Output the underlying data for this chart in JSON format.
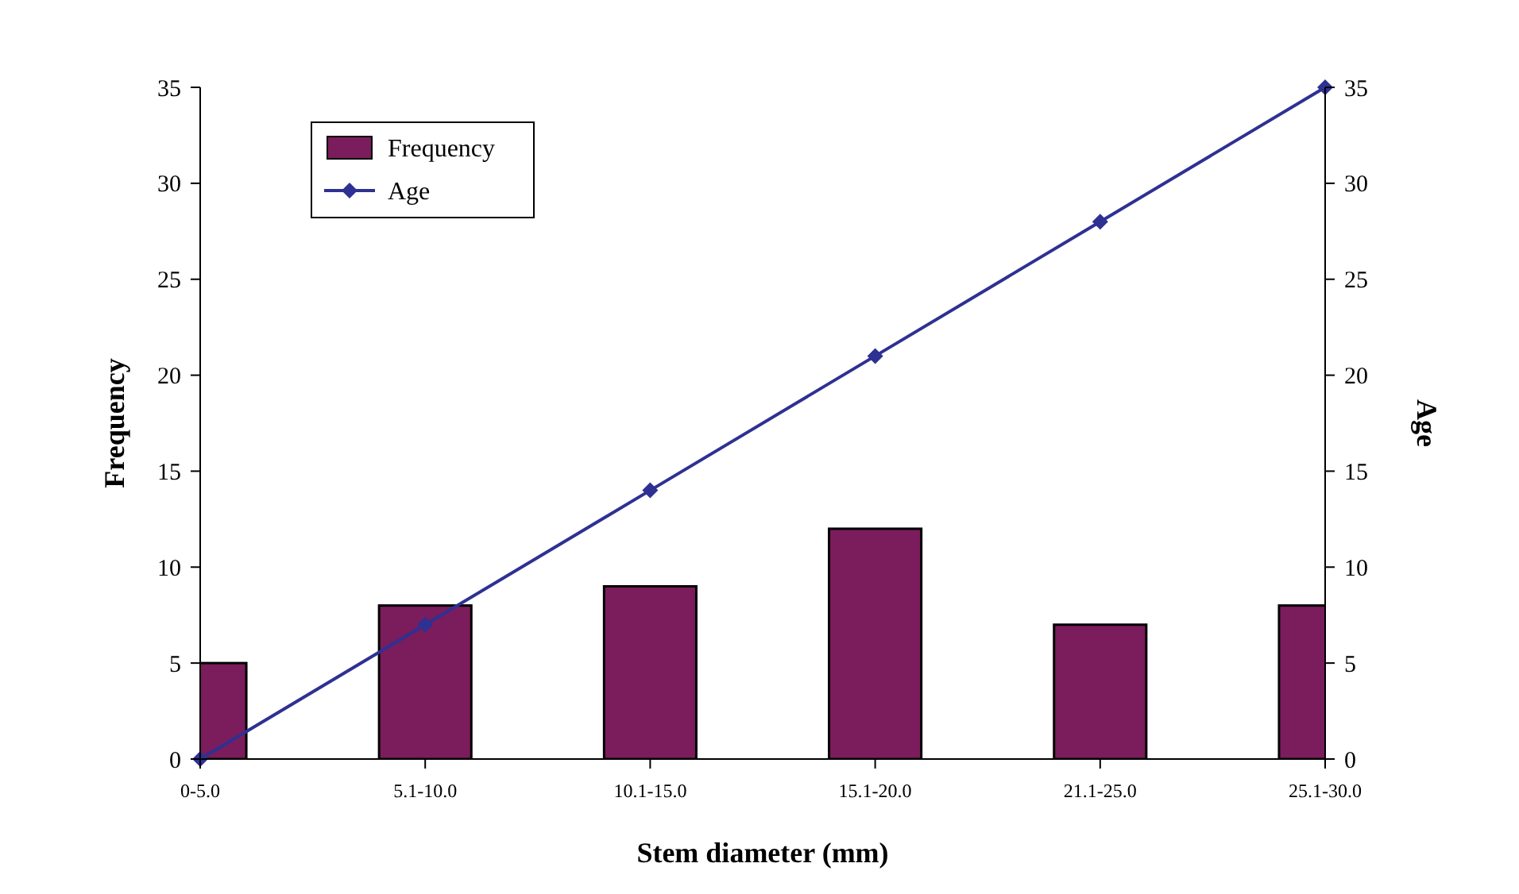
{
  "chart_data": {
    "type": "bar",
    "xlabel": "Stem diameter (mm)",
    "ylabel": "Frequency",
    "y2label": "Age",
    "categories": [
      "0-5.0",
      "5.1-10.0",
      "10.1-15.0",
      "15.1-20.0",
      "21.1-25.0",
      "25.1-30.0"
    ],
    "series": [
      {
        "name": "Frequency",
        "color": "#7b1c5c",
        "values": [
          5,
          8,
          9,
          12,
          7,
          8
        ]
      },
      {
        "name": "Age",
        "type": "line",
        "axis": "y2",
        "color": "#2e3192",
        "marker": "diamond",
        "line_style": "solid",
        "values": [
          0,
          7,
          14,
          21,
          28,
          35
        ]
      }
    ],
    "ylim": [
      0,
      35
    ],
    "yticks": [
      0,
      5,
      10,
      15,
      20,
      25,
      30,
      35
    ],
    "y2lim": [
      0,
      35
    ],
    "y2ticks": [
      0,
      5,
      10,
      15,
      20,
      25,
      30,
      35
    ],
    "legend": "top left",
    "grid": false
  }
}
